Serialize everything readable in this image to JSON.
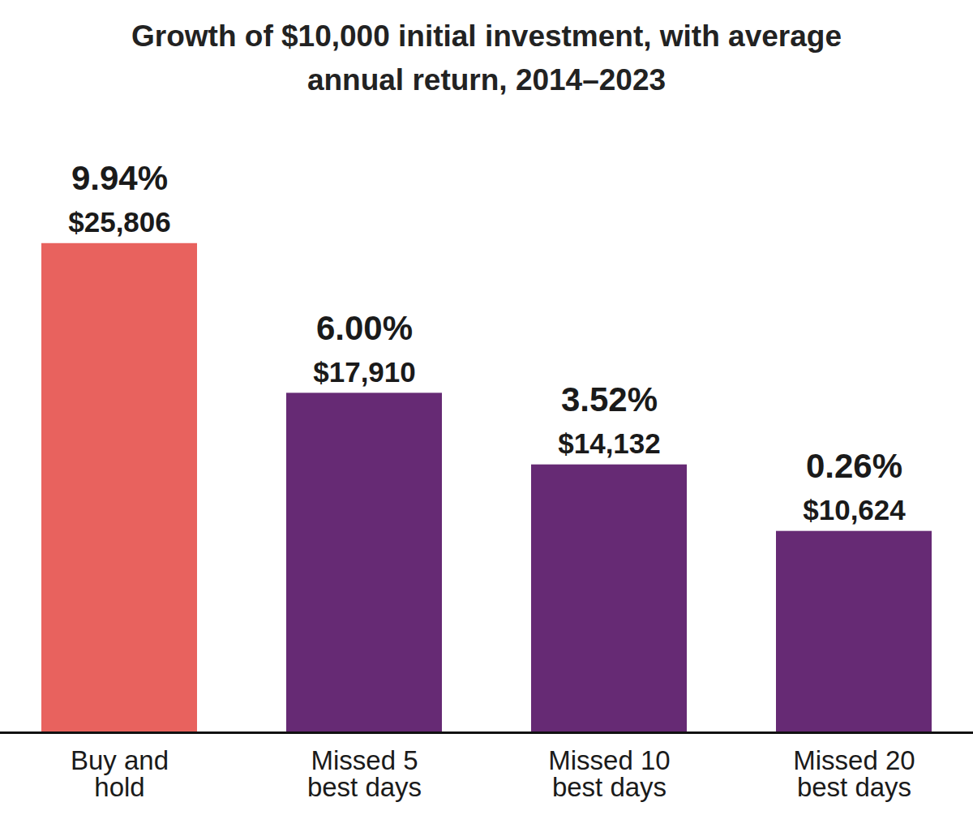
{
  "chart_data": {
    "type": "bar",
    "title": "Growth of $10,000 initial investment, with average annual return, 2014–2023",
    "categories": [
      "Buy and hold",
      "Missed 5 best days",
      "Missed 10 best days",
      "Missed 20 best days"
    ],
    "values": [
      25806,
      17910,
      14132,
      10624
    ],
    "value_labels": [
      "$25,806",
      "$17,910",
      "$14,132",
      "$10,624"
    ],
    "returns": [
      9.94,
      6.0,
      3.52,
      0.26
    ],
    "return_labels": [
      "9.94%",
      "6.00%",
      "3.52%",
      "0.26%"
    ],
    "colors": [
      "#e8625e",
      "#662a74",
      "#662a74",
      "#662a74"
    ],
    "ylim": [
      0,
      32000
    ],
    "data_labels": true,
    "tick_labels": "x",
    "grid": false
  }
}
